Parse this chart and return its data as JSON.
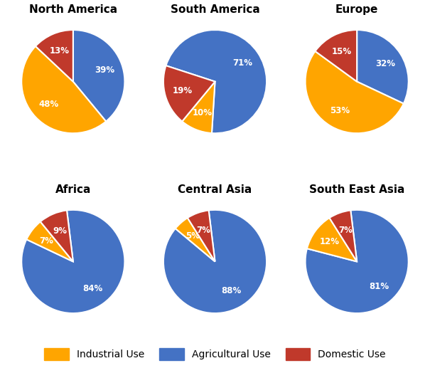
{
  "regions": [
    "North America",
    "South America",
    "Europe",
    "Africa",
    "Central Asia",
    "South East Asia"
  ],
  "data": {
    "North America": {
      "Agricultural Use": 39,
      "Industrial Use": 48,
      "Domestic Use": 13
    },
    "South America": {
      "Agricultural Use": 71,
      "Industrial Use": 10,
      "Domestic Use": 19
    },
    "Europe": {
      "Agricultural Use": 32,
      "Industrial Use": 53,
      "Domestic Use": 15
    },
    "Africa": {
      "Agricultural Use": 84,
      "Industrial Use": 7,
      "Domestic Use": 9
    },
    "Central Asia": {
      "Agricultural Use": 88,
      "Industrial Use": 5,
      "Domestic Use": 7
    },
    "South East Asia": {
      "Agricultural Use": 81,
      "Industrial Use": 12,
      "Domestic Use": 7
    }
  },
  "colors": {
    "Industrial Use": "#FFA500",
    "Agricultural Use": "#4472C4",
    "Domestic Use": "#C0392B"
  },
  "category_order": [
    "Agricultural Use",
    "Industrial Use",
    "Domestic Use"
  ],
  "text_color": "white",
  "label_fontsize": 8.5,
  "title_fontsize": 11,
  "background_color": "#FFFFFF",
  "startangles": {
    "North America": 90,
    "South America": 162,
    "Europe": 90,
    "Africa": 97,
    "Central Asia": 97,
    "South East Asia": 97
  },
  "label_r": 0.65
}
